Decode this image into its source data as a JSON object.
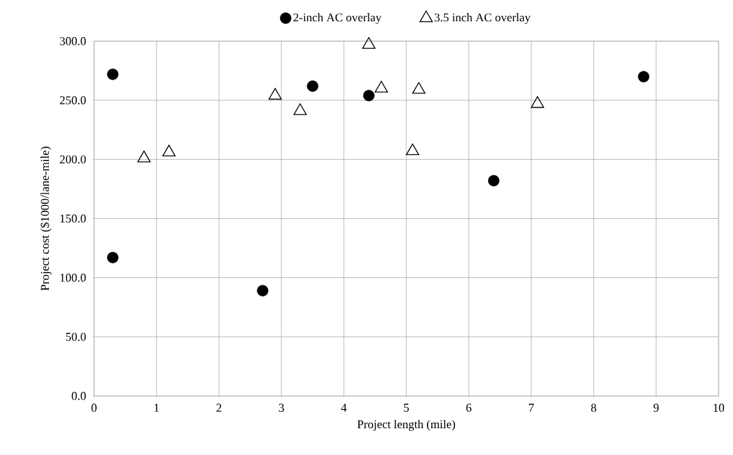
{
  "chart_data": {
    "type": "scatter",
    "xlabel": "Project length (mile)",
    "ylabel": "Project cost ($1000/lane-mile)",
    "xlim": [
      0,
      10
    ],
    "xticks": [
      0,
      1,
      2,
      3,
      4,
      5,
      6,
      7,
      8,
      9,
      10
    ],
    "ylim": [
      0,
      300
    ],
    "yticks": [
      {
        "value": 0,
        "label": "0.0"
      },
      {
        "value": 50,
        "label": "50.0"
      },
      {
        "value": 100,
        "label": "100.0"
      },
      {
        "value": 150,
        "label": "150.0"
      },
      {
        "value": 200,
        "label": "200.0"
      },
      {
        "value": 250,
        "label": "250.0"
      },
      {
        "value": 300,
        "label": "300.0"
      }
    ],
    "grid": true,
    "legend": "top",
    "series": [
      {
        "name": "2-inch AC overlay",
        "color": "#000000",
        "marker": "circle",
        "x": [
          0.3,
          0.3,
          2.7,
          3.5,
          4.4,
          6.4,
          8.8
        ],
        "values": [
          272,
          117,
          89,
          262,
          254,
          182,
          270
        ]
      },
      {
        "name": "3.5 inch AC overlay",
        "color": "#000000",
        "marker": "triangle",
        "x": [
          0.8,
          1.2,
          2.9,
          3.3,
          4.4,
          4.6,
          5.2,
          5.1,
          7.1
        ],
        "values": [
          201,
          206,
          254,
          241,
          297,
          260,
          259,
          207,
          247
        ]
      }
    ]
  }
}
